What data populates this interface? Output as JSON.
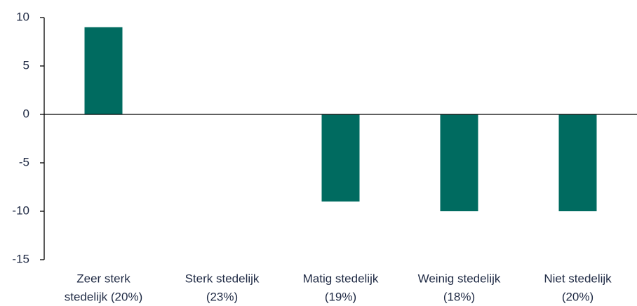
{
  "chart_data": {
    "type": "bar",
    "categories": [
      [
        "Zeer sterk",
        "stedelijk (20%)"
      ],
      [
        "Sterk stedelijk",
        "(23%)"
      ],
      [
        "Matig stedelijk",
        "(19%)"
      ],
      [
        "Weinig stedelijk",
        "(18%)"
      ],
      [
        "Niet stedelijk",
        "(20%)"
      ]
    ],
    "values": [
      9,
      0,
      -9,
      -10,
      -10
    ],
    "color": "#006b60",
    "ylim": [
      -15,
      10
    ],
    "yticks": [
      -15,
      -10,
      -5,
      0,
      5,
      10
    ],
    "grid": false
  }
}
